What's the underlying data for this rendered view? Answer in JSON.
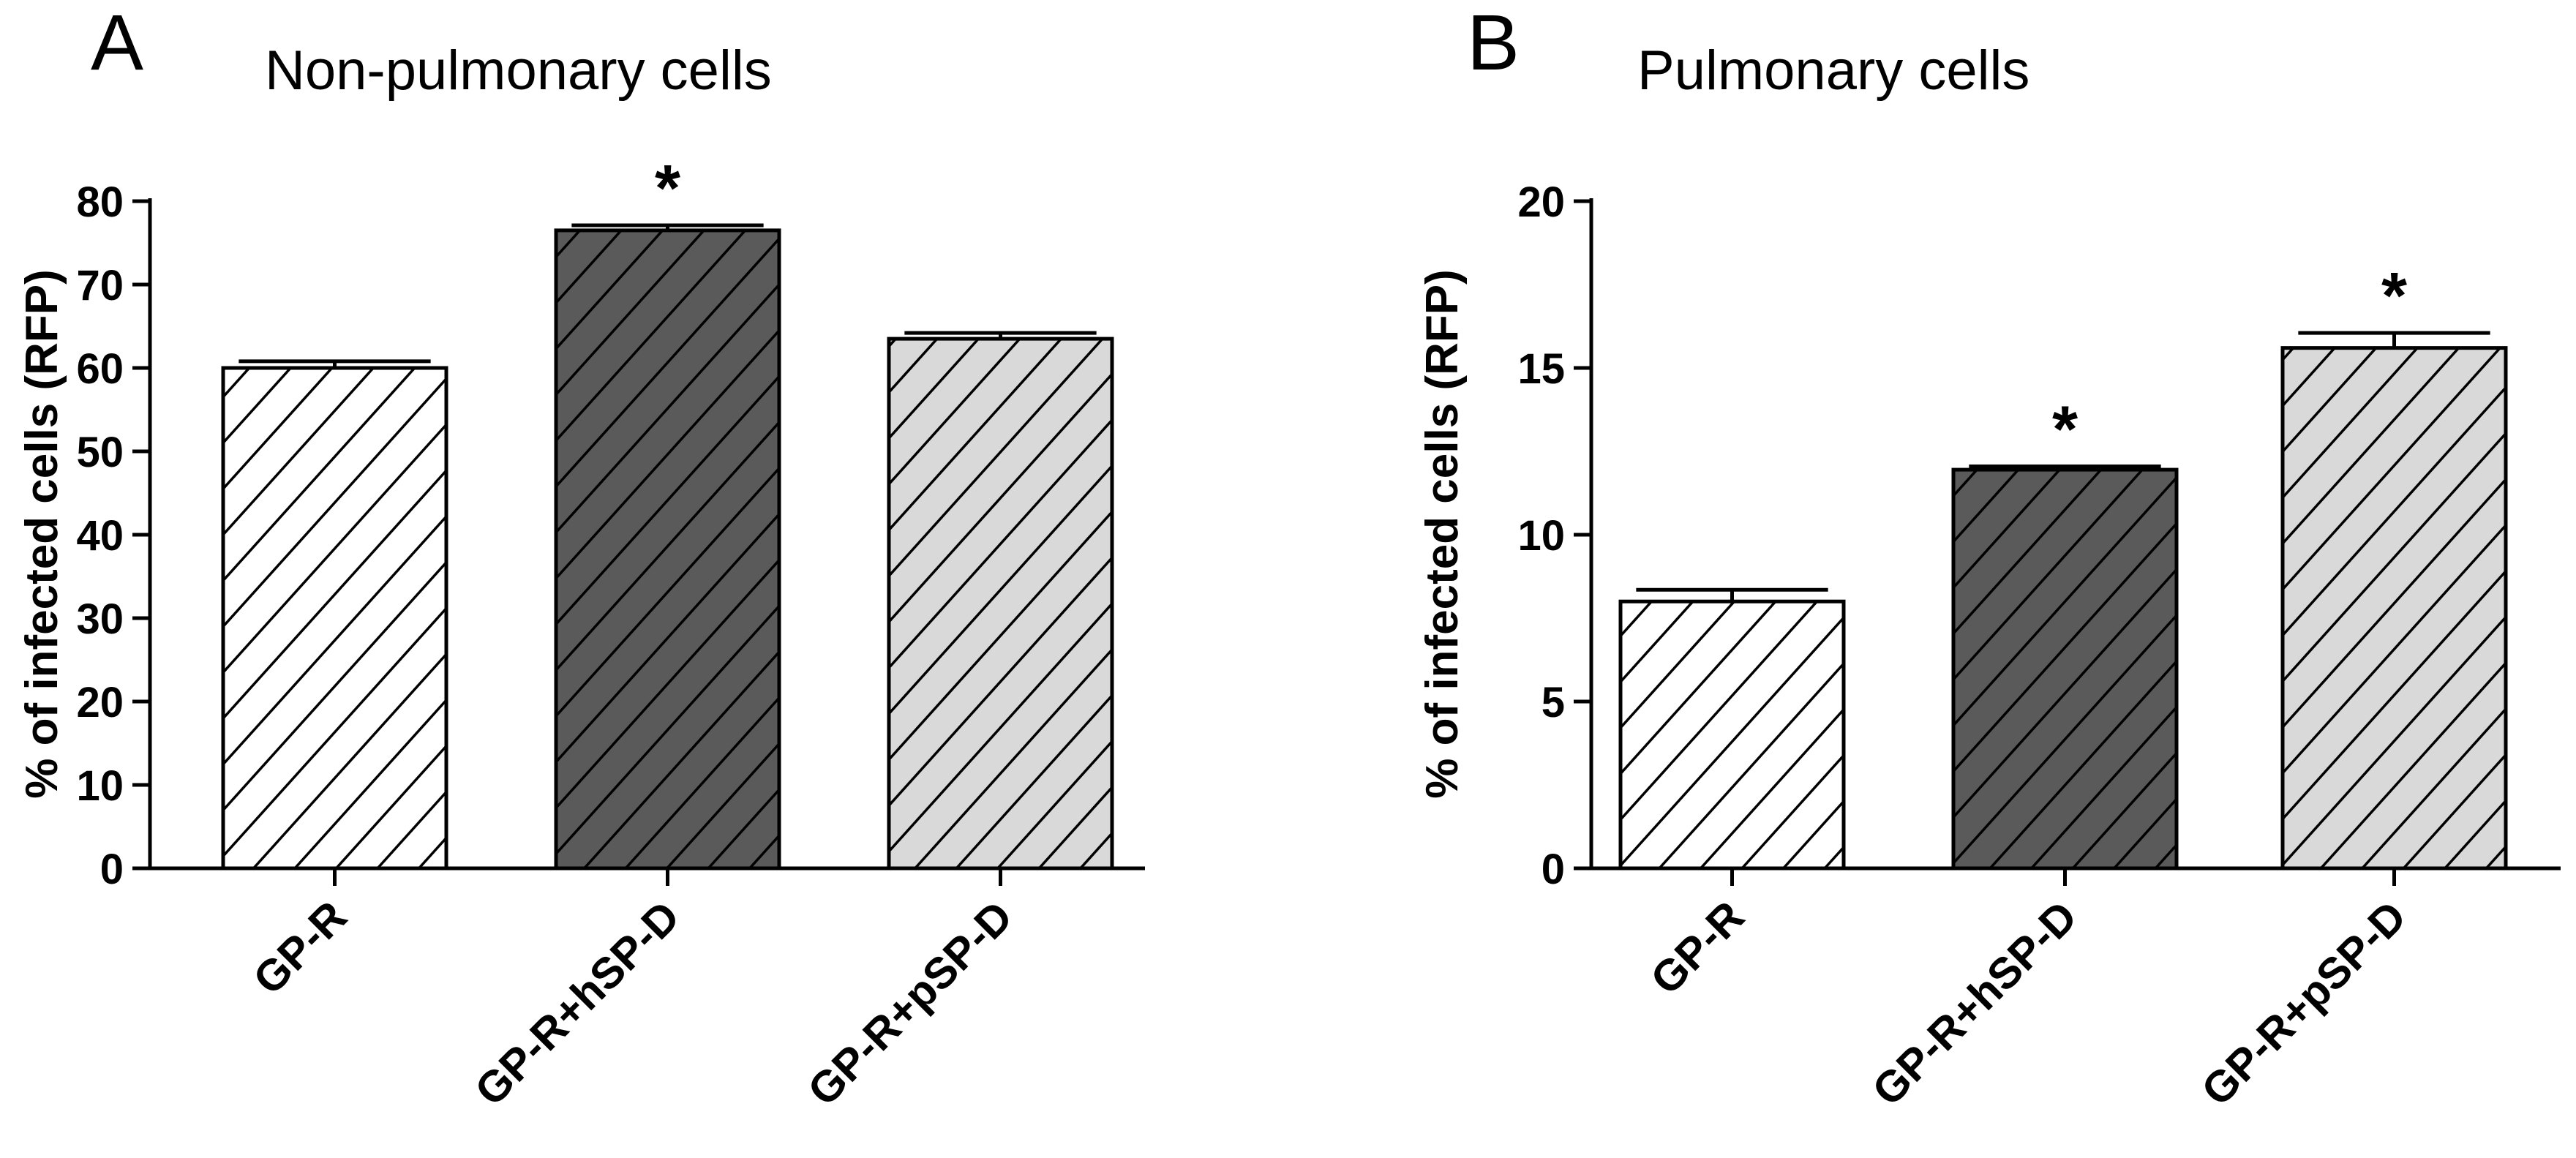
{
  "chart_data": [
    {
      "type": "bar",
      "panel": "A",
      "title": "Non-pulmonary cells",
      "xlabel": "",
      "ylabel": "% of infected cells (RFP)",
      "ylim": [
        0,
        80
      ],
      "yticks": [
        0,
        10,
        20,
        30,
        40,
        50,
        60,
        70,
        80
      ],
      "categories": [
        "GP-R",
        "GP-R+hSP-D",
        "GP-R+pSP-D"
      ],
      "values": [
        60,
        76.5,
        63.5
      ],
      "errors": [
        0.8,
        0.6,
        0.7
      ],
      "significance": [
        "",
        "*",
        ""
      ],
      "fills": [
        "#ffffff",
        "#5a5a5a",
        "#d9d9d9"
      ],
      "pattern": "diagonal-hatch",
      "grid": false
    },
    {
      "type": "bar",
      "panel": "B",
      "title": "Pulmonary cells",
      "xlabel": "",
      "ylabel": "% of infected cells (RFP)",
      "ylim": [
        0,
        20
      ],
      "yticks": [
        0,
        5,
        10,
        15,
        20
      ],
      "categories": [
        "GP-R",
        "GP-R+hSP-D",
        "GP-R+pSP-D"
      ],
      "values": [
        8,
        11.95,
        15.6
      ],
      "errors": [
        0.35,
        0.1,
        0.45
      ],
      "significance": [
        "",
        "*",
        "*"
      ],
      "fills": [
        "#ffffff",
        "#5a5a5a",
        "#d9d9d9"
      ],
      "pattern": "diagonal-hatch",
      "grid": false
    }
  ]
}
